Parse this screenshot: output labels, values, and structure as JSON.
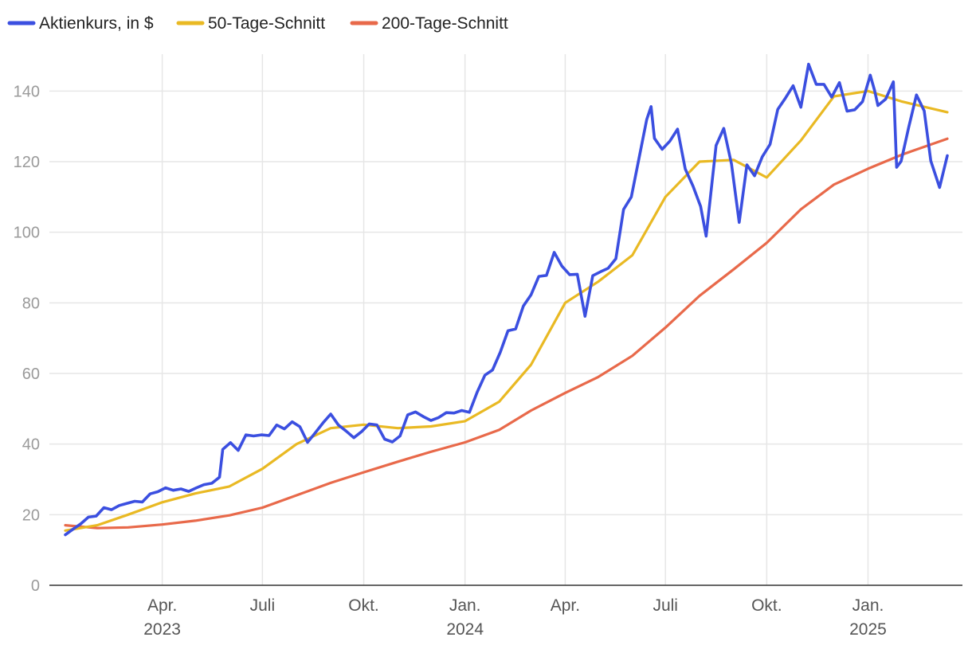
{
  "chart_data": {
    "type": "line",
    "title": "",
    "xlabel": "",
    "ylabel": "",
    "ylim": [
      0,
      150
    ],
    "yticks": [
      0,
      20,
      40,
      60,
      80,
      100,
      120,
      140
    ],
    "grid": true,
    "legend_position": "top-left",
    "x_range": [
      "2023-01-03",
      "2025-03-14"
    ],
    "x_ticks": [
      {
        "date": "2023-04-01",
        "label": "Apr.",
        "year": "2023"
      },
      {
        "date": "2023-07-01",
        "label": "Juli",
        "year": ""
      },
      {
        "date": "2023-10-01",
        "label": "Okt.",
        "year": ""
      },
      {
        "date": "2024-01-01",
        "label": "Jan.",
        "year": "2024"
      },
      {
        "date": "2024-04-01",
        "label": "Apr.",
        "year": ""
      },
      {
        "date": "2024-07-01",
        "label": "Juli",
        "year": ""
      },
      {
        "date": "2024-10-01",
        "label": "Okt.",
        "year": ""
      },
      {
        "date": "2025-01-01",
        "label": "Jan.",
        "year": "2025"
      }
    ],
    "series": [
      {
        "name": "Aktienkurs, in $",
        "color": "#3b4fe0",
        "points": [
          [
            "2023-01-03",
            14.3
          ],
          [
            "2023-01-10",
            15.9
          ],
          [
            "2023-01-17",
            17.4
          ],
          [
            "2023-01-24",
            19.3
          ],
          [
            "2023-01-31",
            19.6
          ],
          [
            "2023-02-07",
            22.0
          ],
          [
            "2023-02-14",
            21.4
          ],
          [
            "2023-02-21",
            22.6
          ],
          [
            "2023-02-28",
            23.2
          ],
          [
            "2023-03-07",
            23.8
          ],
          [
            "2023-03-14",
            23.6
          ],
          [
            "2023-03-21",
            25.9
          ],
          [
            "2023-03-28",
            26.5
          ],
          [
            "2023-04-04",
            27.6
          ],
          [
            "2023-04-11",
            26.9
          ],
          [
            "2023-04-18",
            27.3
          ],
          [
            "2023-04-25",
            26.6
          ],
          [
            "2023-05-02",
            27.6
          ],
          [
            "2023-05-09",
            28.5
          ],
          [
            "2023-05-16",
            28.9
          ],
          [
            "2023-05-23",
            30.6
          ],
          [
            "2023-05-26",
            38.5
          ],
          [
            "2023-06-02",
            40.4
          ],
          [
            "2023-06-09",
            38.2
          ],
          [
            "2023-06-16",
            42.6
          ],
          [
            "2023-06-23",
            42.3
          ],
          [
            "2023-06-30",
            42.6
          ],
          [
            "2023-07-07",
            42.4
          ],
          [
            "2023-07-14",
            45.4
          ],
          [
            "2023-07-21",
            44.3
          ],
          [
            "2023-07-28",
            46.3
          ],
          [
            "2023-08-04",
            44.9
          ],
          [
            "2023-08-11",
            40.5
          ],
          [
            "2023-08-18",
            43.2
          ],
          [
            "2023-08-25",
            46.0
          ],
          [
            "2023-09-01",
            48.5
          ],
          [
            "2023-09-08",
            45.4
          ],
          [
            "2023-09-15",
            43.7
          ],
          [
            "2023-09-22",
            41.8
          ],
          [
            "2023-09-29",
            43.5
          ],
          [
            "2023-10-06",
            45.7
          ],
          [
            "2023-10-13",
            45.4
          ],
          [
            "2023-10-20",
            41.4
          ],
          [
            "2023-10-27",
            40.6
          ],
          [
            "2023-11-03",
            42.3
          ],
          [
            "2023-11-10",
            48.3
          ],
          [
            "2023-11-17",
            49.1
          ],
          [
            "2023-11-24",
            47.8
          ],
          [
            "2023-12-01",
            46.7
          ],
          [
            "2023-12-08",
            47.5
          ],
          [
            "2023-12-15",
            48.9
          ],
          [
            "2023-12-22",
            48.8
          ],
          [
            "2023-12-29",
            49.5
          ],
          [
            "2024-01-05",
            49.0
          ],
          [
            "2024-01-12",
            54.7
          ],
          [
            "2024-01-19",
            59.5
          ],
          [
            "2024-01-26",
            61.0
          ],
          [
            "2024-02-02",
            66.0
          ],
          [
            "2024-02-09",
            72.1
          ],
          [
            "2024-02-16",
            72.6
          ],
          [
            "2024-02-23",
            79.1
          ],
          [
            "2024-03-01",
            82.3
          ],
          [
            "2024-03-08",
            87.5
          ],
          [
            "2024-03-15",
            87.8
          ],
          [
            "2024-03-22",
            94.3
          ],
          [
            "2024-03-29",
            90.4
          ],
          [
            "2024-04-05",
            88.0
          ],
          [
            "2024-04-12",
            88.1
          ],
          [
            "2024-04-19",
            76.2
          ],
          [
            "2024-04-26",
            87.7
          ],
          [
            "2024-05-03",
            88.8
          ],
          [
            "2024-05-10",
            89.8
          ],
          [
            "2024-05-17",
            92.5
          ],
          [
            "2024-05-24",
            106.5
          ],
          [
            "2024-05-31",
            110.0
          ],
          [
            "2024-06-07",
            120.9
          ],
          [
            "2024-06-14",
            131.9
          ],
          [
            "2024-06-18",
            135.6
          ],
          [
            "2024-06-21",
            126.6
          ],
          [
            "2024-06-28",
            123.5
          ],
          [
            "2024-07-05",
            125.8
          ],
          [
            "2024-07-12",
            129.2
          ],
          [
            "2024-07-19",
            117.9
          ],
          [
            "2024-07-26",
            113.1
          ],
          [
            "2024-08-02",
            107.3
          ],
          [
            "2024-08-07",
            98.9
          ],
          [
            "2024-08-16",
            124.6
          ],
          [
            "2024-08-23",
            129.4
          ],
          [
            "2024-08-30",
            119.4
          ],
          [
            "2024-09-06",
            102.8
          ],
          [
            "2024-09-13",
            119.1
          ],
          [
            "2024-09-20",
            116.0
          ],
          [
            "2024-09-27",
            121.4
          ],
          [
            "2024-10-04",
            124.9
          ],
          [
            "2024-10-11",
            134.8
          ],
          [
            "2024-10-18",
            138.0
          ],
          [
            "2024-10-25",
            141.5
          ],
          [
            "2024-11-01",
            135.4
          ],
          [
            "2024-11-08",
            147.6
          ],
          [
            "2024-11-15",
            141.9
          ],
          [
            "2024-11-22",
            141.9
          ],
          [
            "2024-11-29",
            138.3
          ],
          [
            "2024-12-06",
            142.4
          ],
          [
            "2024-12-13",
            134.3
          ],
          [
            "2024-12-20",
            134.7
          ],
          [
            "2024-12-27",
            137.0
          ],
          [
            "2025-01-03",
            144.5
          ],
          [
            "2025-01-07",
            140.1
          ],
          [
            "2025-01-10",
            135.9
          ],
          [
            "2025-01-17",
            137.7
          ],
          [
            "2025-01-24",
            142.6
          ],
          [
            "2025-01-27",
            118.4
          ],
          [
            "2025-01-31",
            120.1
          ],
          [
            "2025-02-07",
            129.8
          ],
          [
            "2025-02-14",
            138.9
          ],
          [
            "2025-02-21",
            134.4
          ],
          [
            "2025-02-27",
            120.2
          ],
          [
            "2025-03-07",
            112.7
          ],
          [
            "2025-03-14",
            121.7
          ]
        ]
      },
      {
        "name": "50-Tage-Schnitt",
        "color": "#e9b923",
        "points": [
          [
            "2023-01-03",
            15.5
          ],
          [
            "2023-02-01",
            17.0
          ],
          [
            "2023-03-01",
            20.0
          ],
          [
            "2023-04-01",
            23.5
          ],
          [
            "2023-05-01",
            26.0
          ],
          [
            "2023-06-01",
            28.0
          ],
          [
            "2023-07-01",
            33.0
          ],
          [
            "2023-08-01",
            40.0
          ],
          [
            "2023-09-01",
            44.5
          ],
          [
            "2023-10-01",
            45.5
          ],
          [
            "2023-11-01",
            44.5
          ],
          [
            "2023-12-01",
            45.0
          ],
          [
            "2024-01-01",
            46.5
          ],
          [
            "2024-02-01",
            52.0
          ],
          [
            "2024-03-01",
            62.5
          ],
          [
            "2024-04-01",
            80.0
          ],
          [
            "2024-05-01",
            86.0
          ],
          [
            "2024-06-01",
            93.5
          ],
          [
            "2024-07-01",
            110.0
          ],
          [
            "2024-08-01",
            120.0
          ],
          [
            "2024-09-01",
            120.5
          ],
          [
            "2024-10-01",
            115.5
          ],
          [
            "2024-11-01",
            126.0
          ],
          [
            "2024-12-01",
            138.5
          ],
          [
            "2025-01-01",
            140.0
          ],
          [
            "2025-02-01",
            137.0
          ],
          [
            "2025-03-14",
            134.0
          ]
        ]
      },
      {
        "name": "200-Tage-Schnitt",
        "color": "#e8694a",
        "points": [
          [
            "2023-01-03",
            17.0
          ],
          [
            "2023-02-01",
            16.2
          ],
          [
            "2023-03-01",
            16.4
          ],
          [
            "2023-04-01",
            17.2
          ],
          [
            "2023-05-01",
            18.3
          ],
          [
            "2023-06-01",
            19.8
          ],
          [
            "2023-07-01",
            22.0
          ],
          [
            "2023-08-01",
            25.5
          ],
          [
            "2023-09-01",
            29.0
          ],
          [
            "2023-10-01",
            32.0
          ],
          [
            "2023-11-01",
            35.0
          ],
          [
            "2023-12-01",
            37.8
          ],
          [
            "2024-01-01",
            40.5
          ],
          [
            "2024-02-01",
            44.0
          ],
          [
            "2024-03-01",
            49.5
          ],
          [
            "2024-04-01",
            54.5
          ],
          [
            "2024-05-01",
            59.0
          ],
          [
            "2024-06-01",
            65.0
          ],
          [
            "2024-07-01",
            73.0
          ],
          [
            "2024-08-01",
            82.0
          ],
          [
            "2024-09-01",
            89.5
          ],
          [
            "2024-10-01",
            97.0
          ],
          [
            "2024-11-01",
            106.5
          ],
          [
            "2024-12-01",
            113.5
          ],
          [
            "2025-01-01",
            118.0
          ],
          [
            "2025-02-01",
            122.0
          ],
          [
            "2025-03-14",
            126.5
          ]
        ]
      }
    ]
  }
}
